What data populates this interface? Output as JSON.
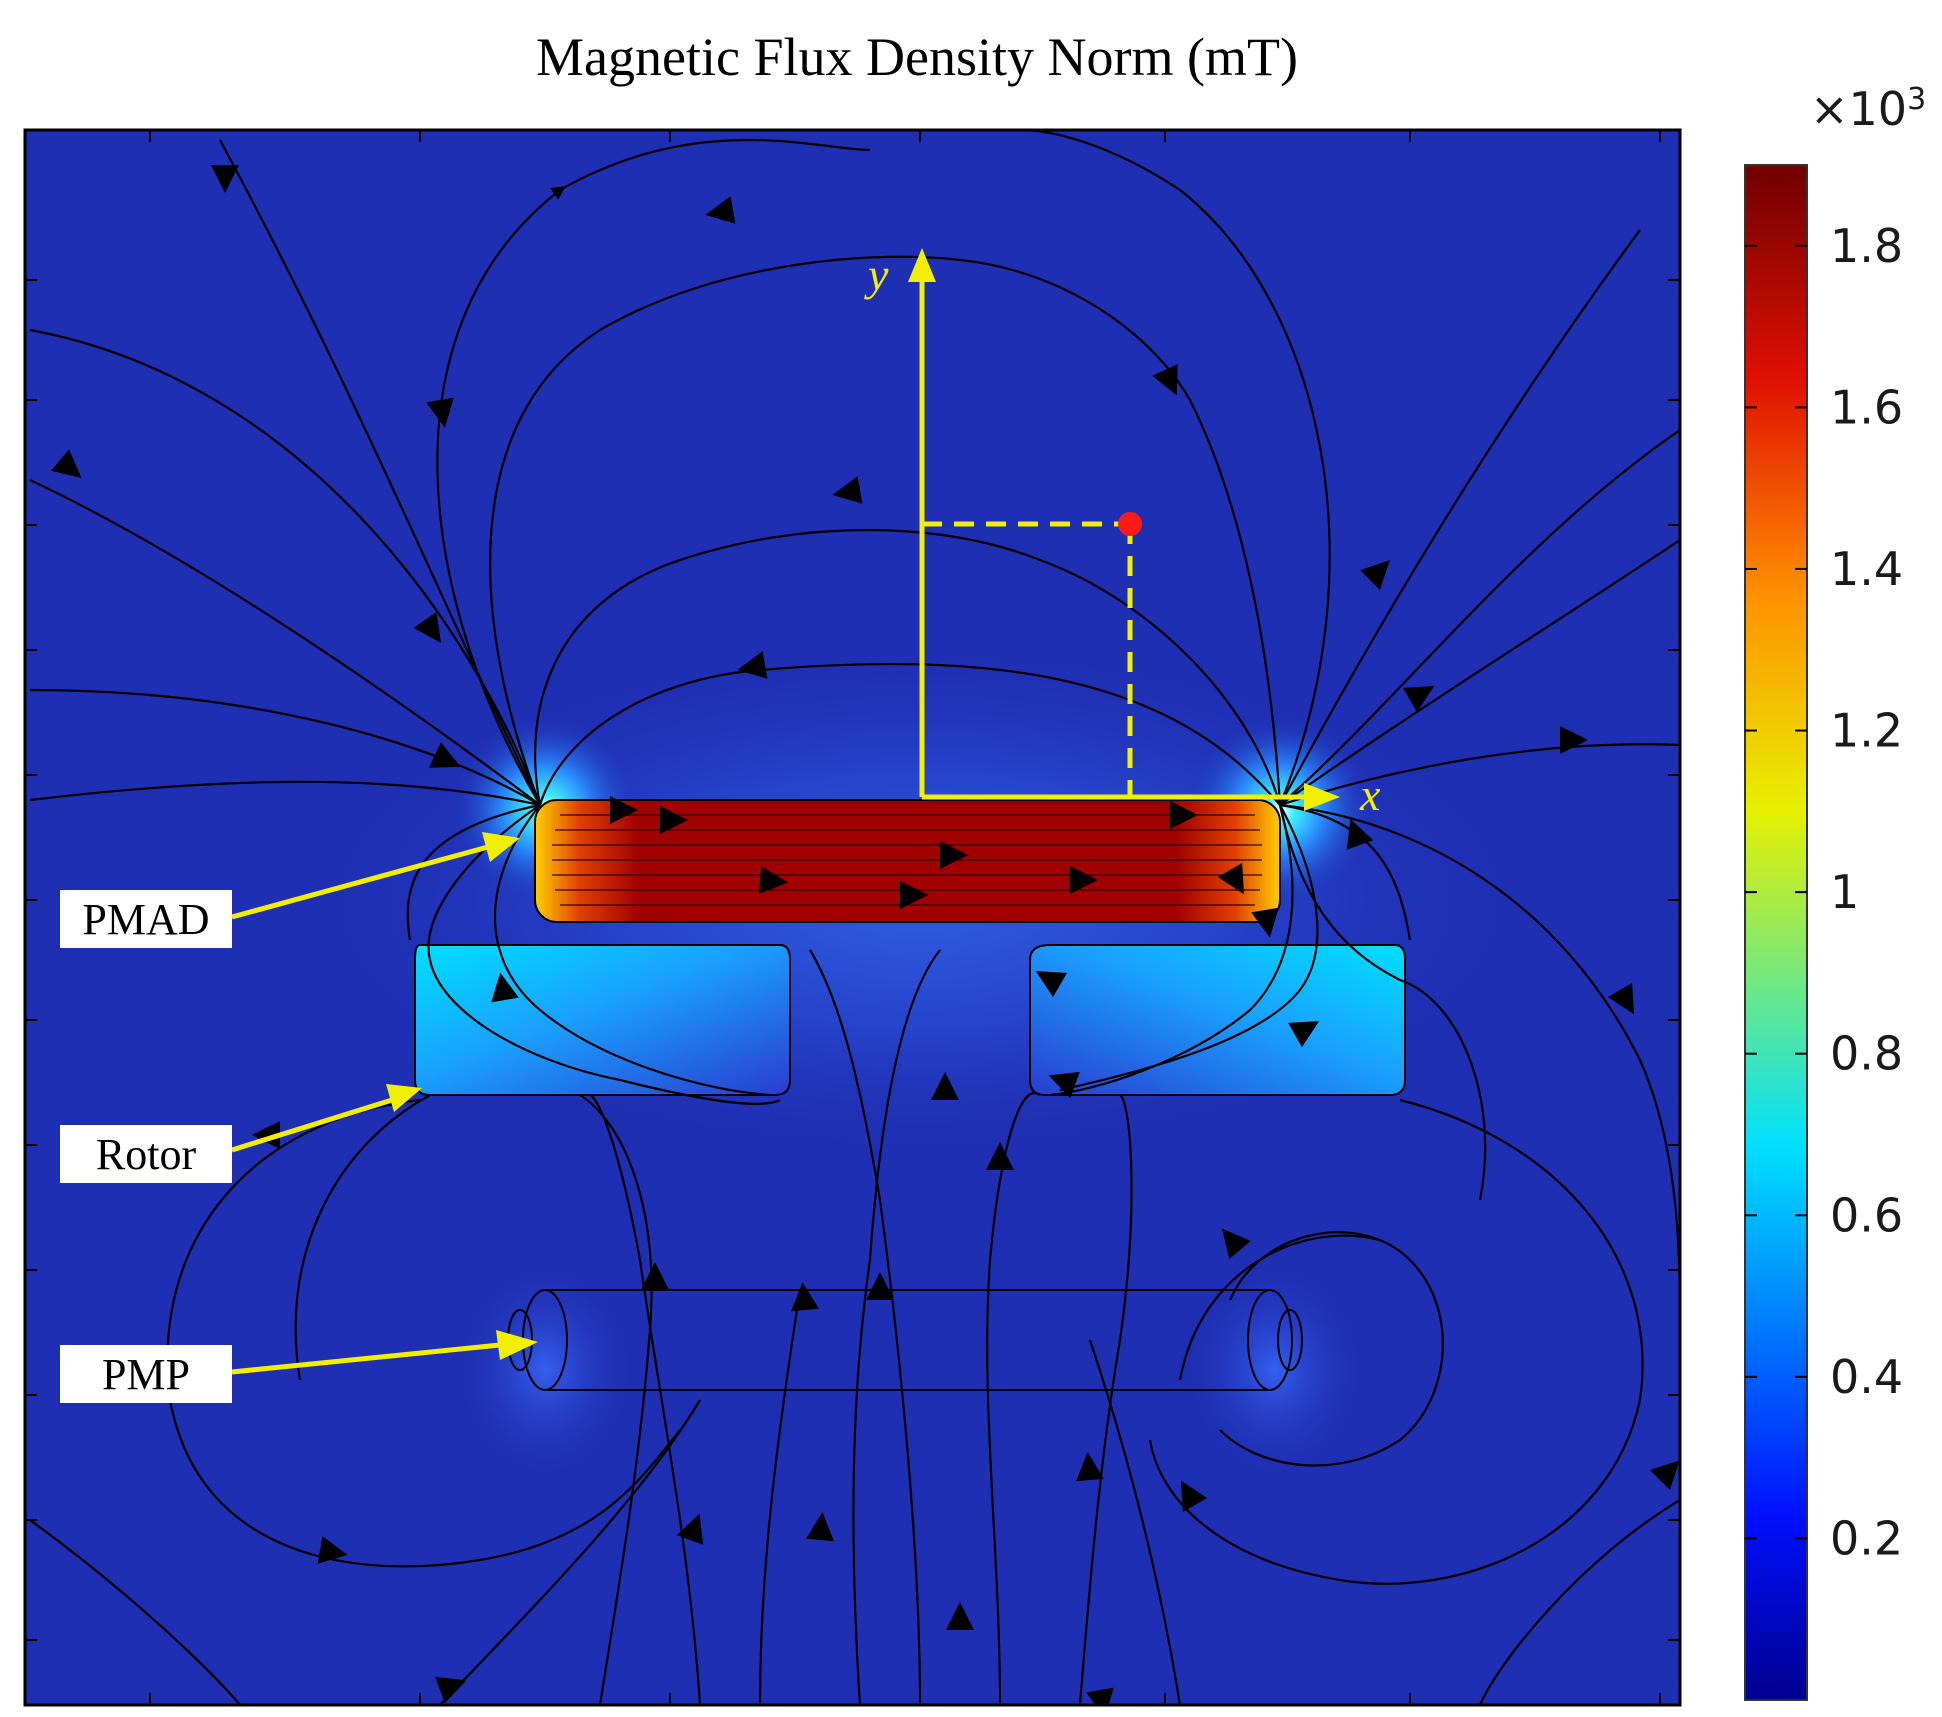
{
  "figure": {
    "title": "Magnetic Flux Density Norm (mT)",
    "labels": {
      "pmad": "PMAD",
      "rotor": "Rotor",
      "pmp": "PMP"
    },
    "axes": {
      "x_label": "x",
      "y_label": "y"
    },
    "colorbar": {
      "multiplier_base": "×10",
      "multiplier_exp": "3",
      "ticks": [
        "1.8",
        "1.6",
        "1.4",
        "1.2",
        "1",
        "0.8",
        "0.6",
        "0.4",
        "0.2"
      ],
      "colormap": "jet",
      "range": [
        0,
        1.9
      ]
    },
    "colors": {
      "background_field": "#1f2fb4",
      "annotation_yellow": "#f2f000",
      "point_marker": "#ff1a1a",
      "pmad_core": "#8a0000"
    }
  }
}
